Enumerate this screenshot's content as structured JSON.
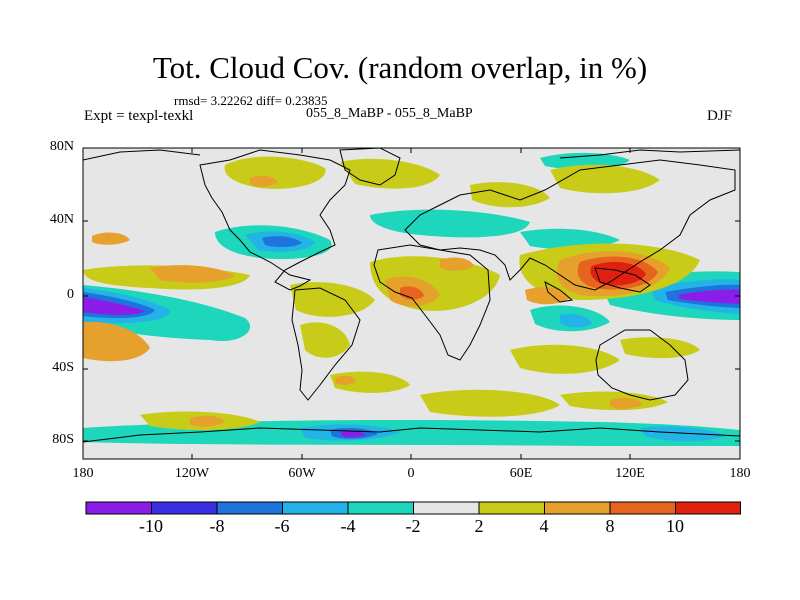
{
  "title": "Tot. Cloud Cov. (random overlap, in %)",
  "stats_line": "rmsd= 3.22262 diff= 0.23835",
  "experiment": "Expt = texpl-texkl",
  "subtitle": "055_8_MaBP - 055_8_MaBP",
  "season": "DJF",
  "lat_ticks": [
    "80N",
    "40N",
    "0",
    "40S",
    "80S"
  ],
  "lon_ticks": [
    "180",
    "120W",
    "60W",
    "0",
    "60E",
    "120E",
    "180"
  ],
  "colorbar": {
    "labels": [
      "-10",
      "-8",
      "-6",
      "-4",
      "-2",
      "2",
      "4",
      "8",
      "10"
    ],
    "colors": [
      "#8a1ee8",
      "#3a2ee0",
      "#1e74dc",
      "#22b4e6",
      "#1ed6bc",
      "#e6e6e6",
      "#c8cc18",
      "#e6a02c",
      "#e6641e",
      "#e02010"
    ]
  }
}
